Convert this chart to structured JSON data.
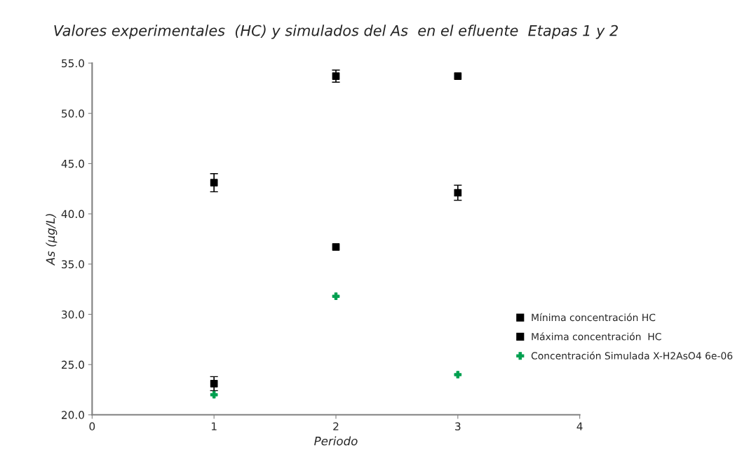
{
  "chart_data": {
    "type": "scatter",
    "title": "Valores experimentales  (HC) y simulados del As  en el efluente  Etapas 1 y 2",
    "xlabel": "Periodo",
    "ylabel": "As (µg/L)",
    "xlim": [
      0,
      4
    ],
    "xticks": [
      0,
      1,
      2,
      3,
      4
    ],
    "ylim": [
      20,
      55
    ],
    "yticks": [
      {
        "value": 20,
        "label": "20.0"
      },
      {
        "value": 25,
        "label": "25.0"
      },
      {
        "value": 30,
        "label": "30.0"
      },
      {
        "value": 35,
        "label": "35.0"
      },
      {
        "value": 40,
        "label": "40.0"
      },
      {
        "value": 45,
        "label": "45.0"
      },
      {
        "value": 50,
        "label": "50.0"
      },
      {
        "value": 55,
        "label": "55.0"
      }
    ],
    "grid": false,
    "legend": "right",
    "series": [
      {
        "name": "Mínima concentración HC",
        "color": "#000000",
        "marker": "square",
        "x": [
          1,
          2,
          3
        ],
        "values": [
          23.1,
          36.7,
          42.1
        ],
        "errors": [
          0.7,
          null,
          0.75
        ]
      },
      {
        "name": "Máxima concentración  HC",
        "color": "#000000",
        "marker": "square",
        "x": [
          1,
          2,
          3
        ],
        "values": [
          43.1,
          53.7,
          53.7
        ],
        "errors": [
          0.9,
          0.6,
          null
        ]
      },
      {
        "name": "Concentración Simulada X-H2AsO4 6e-06",
        "color": "#00a050",
        "marker": "cross",
        "x": [
          1,
          2,
          3
        ],
        "values": [
          22.0,
          31.8,
          24.0
        ]
      }
    ]
  }
}
